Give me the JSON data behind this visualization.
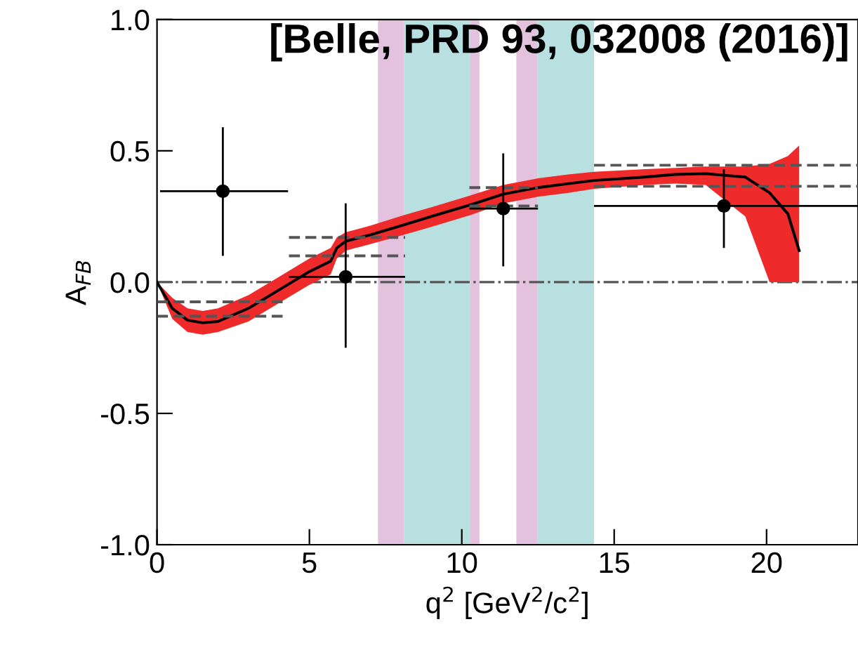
{
  "chart_data": {
    "type": "scatter",
    "title": "[Belle, PRD 93, 032008 (2016)]",
    "xlabel": "q$^{2}$ [GeV$^{2}$/c$^{2}$]",
    "ylabel": "A$_{FB}$",
    "xlim": [
      0,
      23
    ],
    "xticks": [
      0,
      5,
      10,
      15,
      20
    ],
    "ylim": [
      -1.0,
      1.0
    ],
    "yticks": [
      {
        "value": -1.0,
        "label": "-1.0"
      },
      {
        "value": -0.5,
        "label": "-0.5"
      },
      {
        "value": 0.0,
        "label": "0.0"
      },
      {
        "value": 0.5,
        "label": "0.5"
      },
      {
        "value": 1.0,
        "label": "1.0"
      }
    ],
    "grid": false,
    "legend": false,
    "series": [
      {
        "type": "line",
        "color": "#000000",
        "line_style": "solid",
        "marker": "none",
        "x": [
          0,
          0.5,
          1,
          1.5,
          2,
          3,
          4,
          5,
          5.7,
          5.9,
          6.2,
          7,
          8.1,
          9,
          10.28,
          11.36,
          12.5,
          13.5,
          14.34,
          16,
          17,
          18,
          19.3,
          20.1,
          20.7,
          21.07
        ],
        "values": [
          0.0,
          -0.1,
          -0.145,
          -0.155,
          -0.15,
          -0.1,
          -0.03,
          0.04,
          0.08,
          0.13,
          0.156,
          0.18,
          0.218,
          0.25,
          0.294,
          0.335,
          0.36,
          0.375,
          0.387,
          0.4,
          0.41,
          0.413,
          0.4,
          0.34,
          0.26,
          0.12
        ],
        "lower": [
          0.0,
          -0.14,
          -0.19,
          -0.2,
          -0.19,
          -0.15,
          -0.08,
          -0.01,
          0.03,
          0.09,
          0.12,
          0.145,
          0.18,
          0.21,
          0.255,
          0.3,
          0.325,
          0.34,
          0.355,
          0.37,
          0.375,
          0.37,
          0.25,
          0.0,
          0.0,
          0.0
        ],
        "upper": [
          0.0,
          -0.06,
          -0.1,
          -0.11,
          -0.1,
          -0.05,
          0.02,
          0.09,
          0.13,
          0.17,
          0.19,
          0.215,
          0.255,
          0.285,
          0.33,
          0.37,
          0.395,
          0.41,
          0.42,
          0.43,
          0.435,
          0.44,
          0.44,
          0.45,
          0.48,
          0.52
        ]
      },
      {
        "type": "step",
        "color": "#555555",
        "line_style": "dashed",
        "marker": "none",
        "x": [
          0.0,
          4.3,
          4.33,
          8.14,
          10.25,
          12.5,
          14.34,
          23.0
        ],
        "values": [
          -0.075,
          null,
          0.17,
          null,
          0.36,
          null,
          0.445,
          0.445
        ]
      },
      {
        "type": "step",
        "color": "#555555",
        "line_style": "dashed",
        "marker": "none",
        "x": [
          0.0,
          4.3,
          4.33,
          8.14,
          10.25,
          12.5,
          14.34,
          23.0
        ],
        "values": [
          -0.13,
          null,
          0.1,
          null,
          0.29,
          null,
          0.365,
          0.365
        ]
      },
      {
        "color": "#000000",
        "marker": "circle",
        "x": [
          2.16,
          6.19,
          11.36,
          18.6
        ],
        "values": [
          0.346,
          0.02,
          0.28,
          0.29
        ],
        "xerrors": [
          [
            0.1,
            4.3
          ],
          [
            4.33,
            8.14
          ],
          [
            10.25,
            12.5
          ],
          [
            14.34,
            23.0
          ]
        ],
        "errors": [
          [
            0.1,
            0.59
          ],
          [
            -0.25,
            0.3
          ],
          [
            0.06,
            0.49
          ],
          [
            0.13,
            0.43
          ]
        ]
      }
    ],
    "bands": [
      {
        "axis": "x",
        "from": 7.25,
        "to": 8.1,
        "color": "#e2c2dc"
      },
      {
        "axis": "x",
        "from": 8.1,
        "to": 10.28,
        "color": "#b8e0e0"
      },
      {
        "axis": "x",
        "from": 10.28,
        "to": 10.58,
        "color": "#e2c2dc"
      },
      {
        "axis": "x",
        "from": 11.79,
        "to": 12.49,
        "color": "#e2c2dc"
      },
      {
        "axis": "x",
        "from": 12.49,
        "to": 14.34,
        "color": "#b8e0e0"
      }
    ],
    "ref_lines": [
      {
        "axis": "y",
        "value": 0.0,
        "color": "#555555",
        "line_style": "dashdot"
      }
    ]
  }
}
